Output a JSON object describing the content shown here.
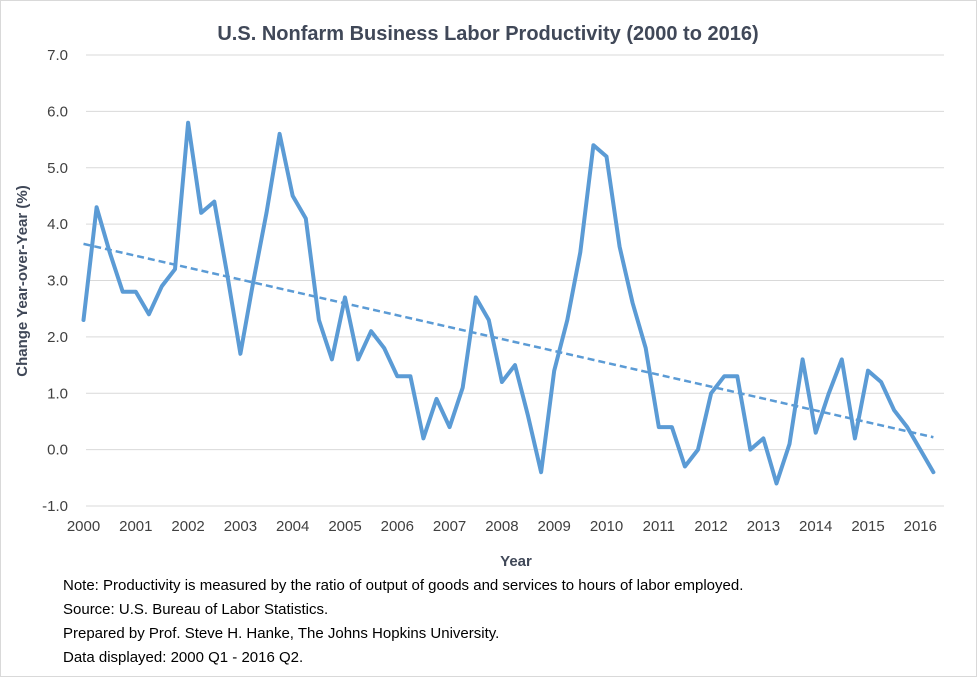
{
  "chart_data": {
    "type": "line",
    "title": "U.S. Nonfarm Business Labor Productivity (2000 to 2016)",
    "xlabel": "Year",
    "ylabel": "Change Year-over-Year (%)",
    "ylim": [
      -1.0,
      7.0
    ],
    "y_ticks": [
      "-1.0",
      "0.0",
      "1.0",
      "2.0",
      "3.0",
      "4.0",
      "5.0",
      "6.0",
      "7.0"
    ],
    "x_ticks": [
      "2000",
      "2001",
      "2002",
      "2003",
      "2004",
      "2005",
      "2006",
      "2007",
      "2008",
      "2009",
      "2010",
      "2011",
      "2012",
      "2013",
      "2014",
      "2015",
      "2016"
    ],
    "grid": true,
    "series": [
      {
        "values": [
          2.3,
          4.3,
          3.5,
          2.8,
          2.8,
          2.4,
          2.9,
          3.2,
          5.8,
          4.2,
          4.4,
          3.1,
          1.7,
          3.0,
          4.2,
          5.6,
          4.5,
          4.1,
          2.3,
          1.6,
          2.7,
          1.6,
          2.1,
          1.8,
          1.3,
          1.3,
          0.2,
          0.9,
          0.4,
          1.1,
          2.7,
          2.3,
          1.2,
          1.5,
          0.6,
          -0.4,
          1.4,
          2.3,
          3.5,
          5.4,
          5.2,
          3.6,
          2.6,
          1.8,
          0.4,
          0.4,
          -0.3,
          0.0,
          1.0,
          1.3,
          1.3,
          0.0,
          0.2,
          -0.6,
          0.1,
          1.6,
          0.3,
          1.0,
          1.6,
          0.2,
          1.4,
          1.2,
          0.7,
          0.4,
          0.0,
          -0.4
        ],
        "color": "#5b9bd5"
      }
    ],
    "trendline": {
      "style": "dashed",
      "start": 3.65,
      "end": 0.22,
      "color": "#5b9bd5"
    }
  },
  "notes": {
    "note": "Note: Productivity is measured by the ratio of output of goods and services to hours of labor employed.",
    "source": "Source: U.S. Bureau of Labor Statistics.",
    "prepared": "Prepared by Prof. Steve H. Hanke, The Johns Hopkins University.",
    "range": "Data displayed: 2000 Q1 - 2016 Q2."
  }
}
